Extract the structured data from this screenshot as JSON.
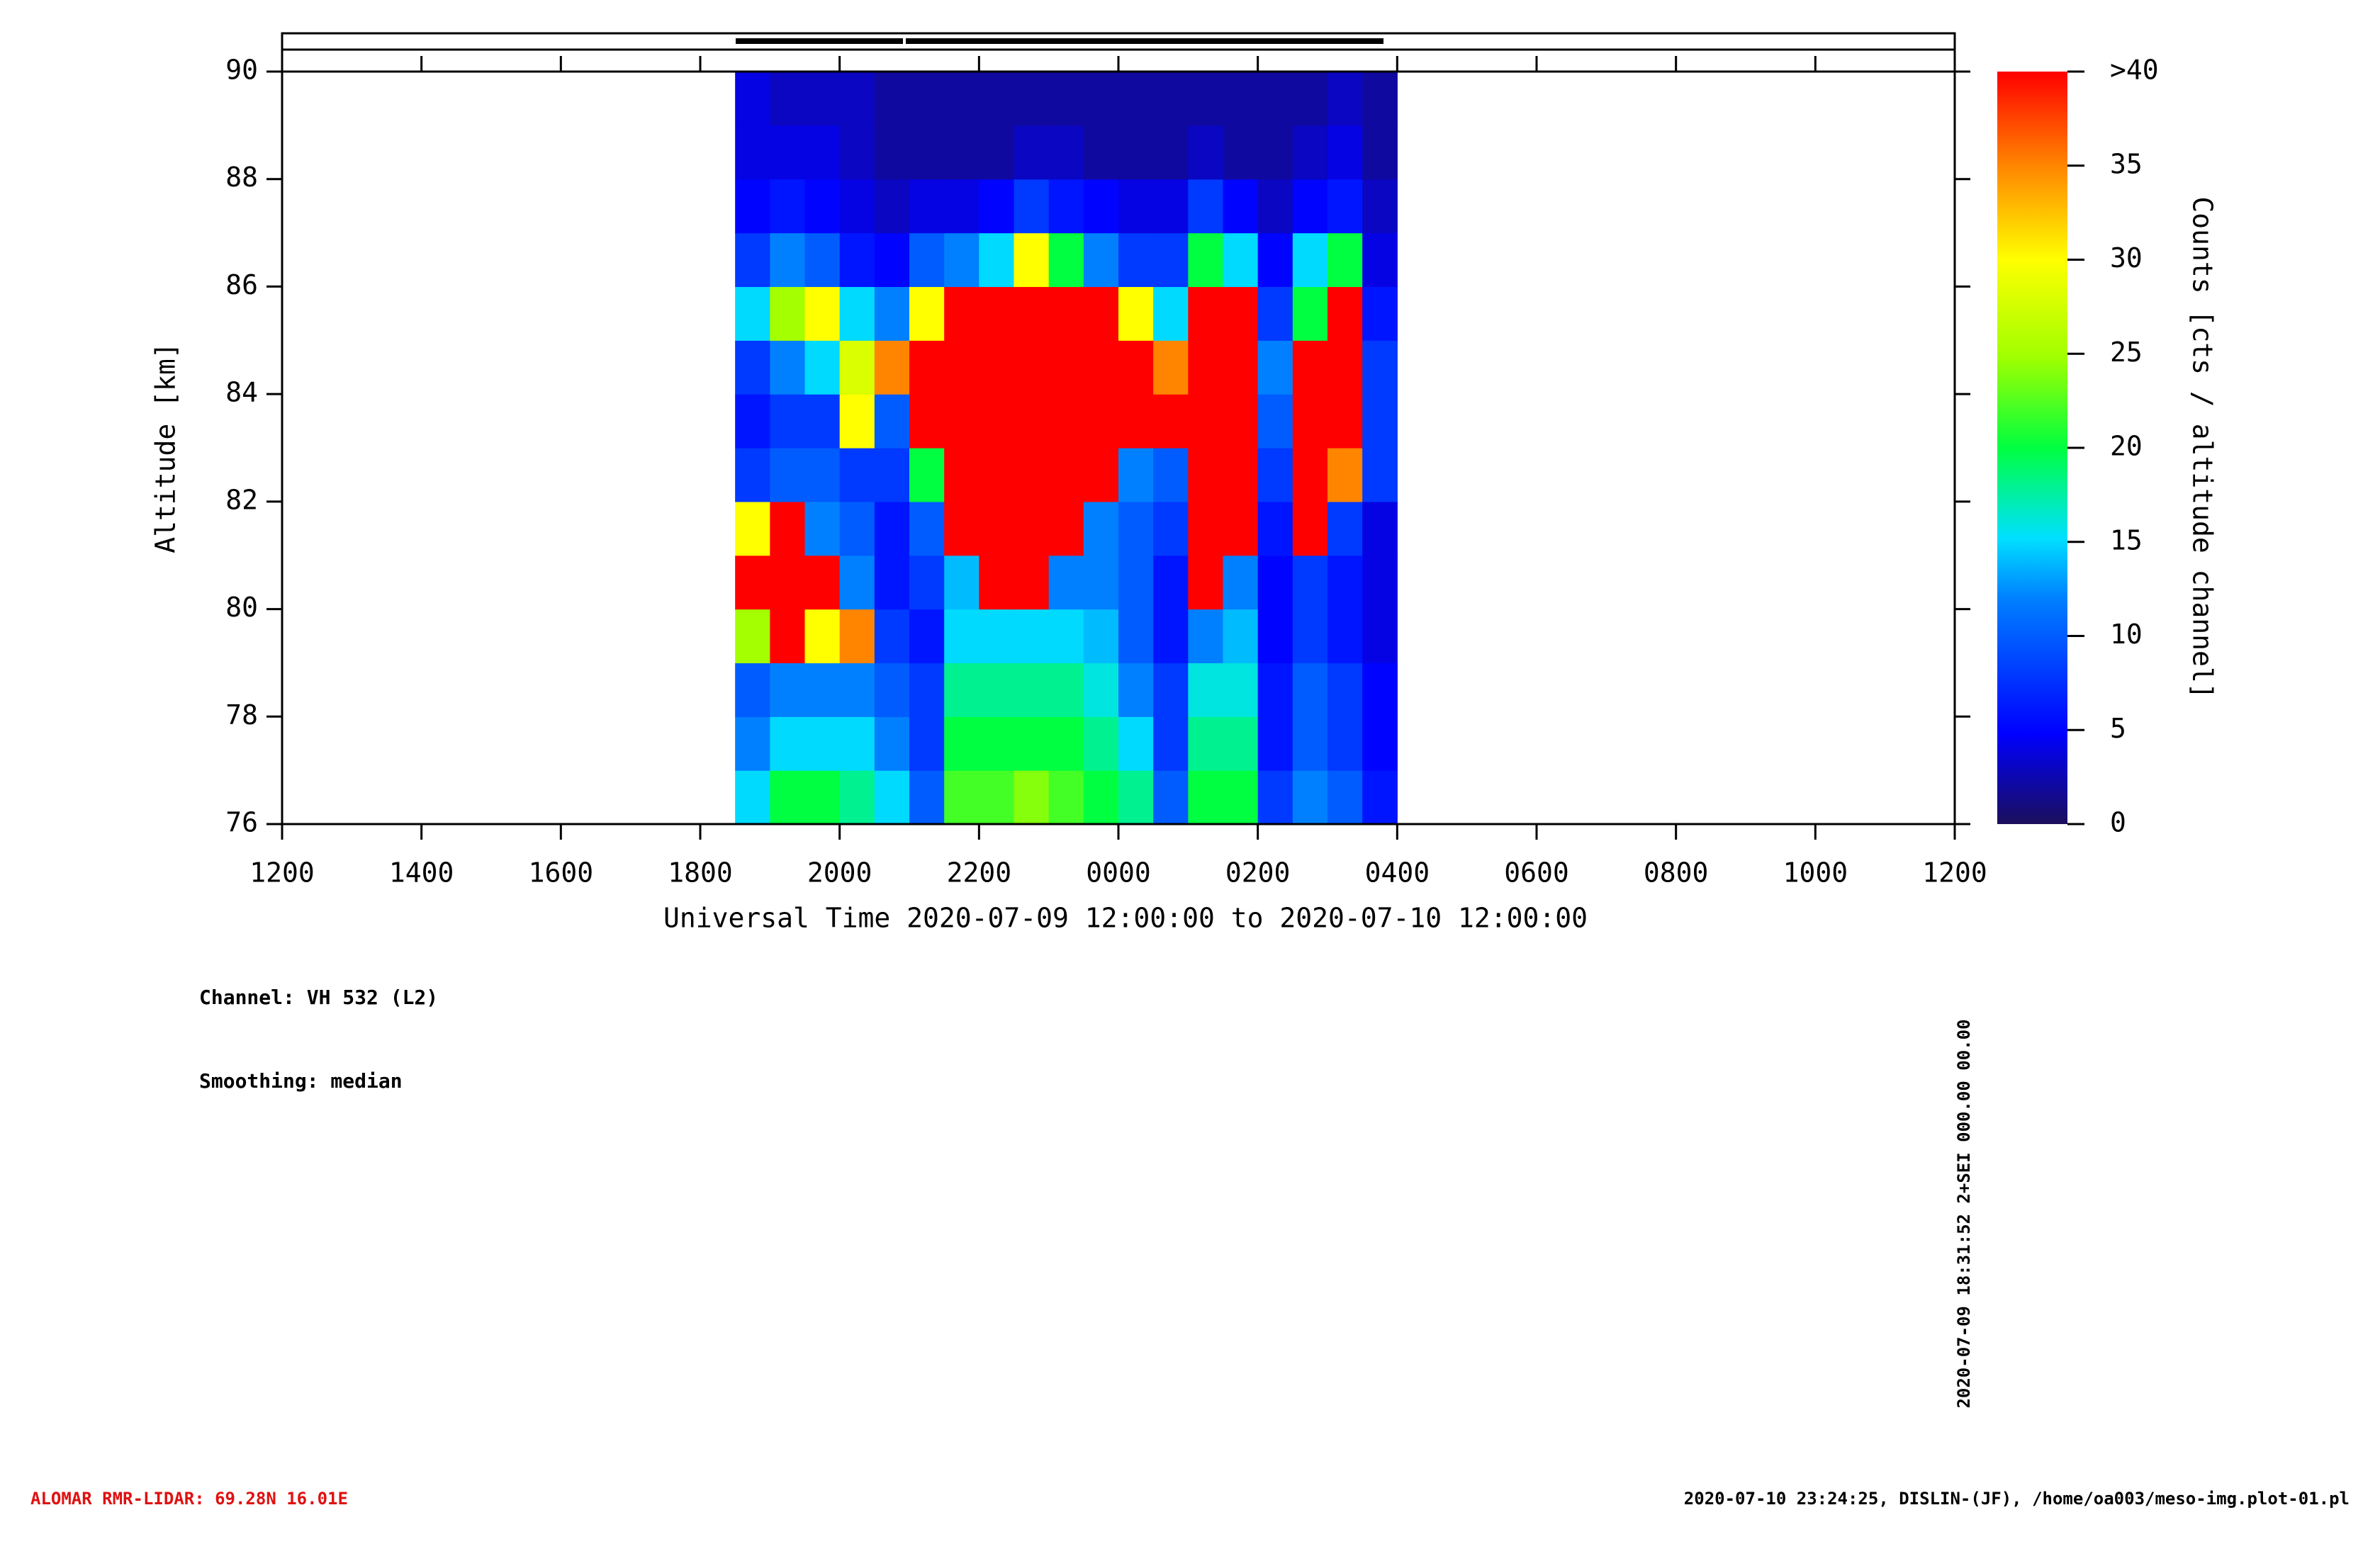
{
  "chart_data": {
    "type": "heatmap",
    "x_label": "Universal Time 2020-07-09 12:00:00 to 2020-07-10 12:00:00",
    "y_label": "Altitude [km]",
    "colorbar_label": "Counts [cts / altitude channel]",
    "xlim": [
      0,
      24
    ],
    "xticks": [
      {
        "value": 0,
        "label": "1200"
      },
      {
        "value": 2,
        "label": "1400"
      },
      {
        "value": 4,
        "label": "1600"
      },
      {
        "value": 6,
        "label": "1800"
      },
      {
        "value": 8,
        "label": "2000"
      },
      {
        "value": 10,
        "label": "2200"
      },
      {
        "value": 12,
        "label": "0000"
      },
      {
        "value": 14,
        "label": "0200"
      },
      {
        "value": 16,
        "label": "0400"
      },
      {
        "value": 18,
        "label": "0600"
      },
      {
        "value": 20,
        "label": "0800"
      },
      {
        "value": 22,
        "label": "1000"
      },
      {
        "value": 24,
        "label": "1200"
      }
    ],
    "ylim": [
      76,
      90
    ],
    "yticks": [
      76,
      78,
      80,
      82,
      84,
      86,
      88,
      90
    ],
    "zlim": [
      0,
      40
    ],
    "zticks": [
      0,
      5,
      10,
      15,
      20,
      25,
      30,
      35,
      {
        "value": 40,
        "label": ">40"
      }
    ],
    "x": [
      6.5,
      7,
      7.5,
      8,
      8.5,
      9,
      9.5,
      10,
      10.5,
      11,
      11.5,
      12,
      12.5,
      13,
      13.5,
      14,
      14.5,
      15,
      15.5
    ],
    "y": [
      76,
      77,
      78,
      79,
      80,
      81,
      82,
      83,
      84,
      85,
      86,
      87,
      88,
      89
    ],
    "values": [
      [
        15,
        20,
        20,
        18,
        15,
        10,
        22,
        22,
        24,
        22,
        20,
        18,
        10,
        20,
        20,
        8,
        12,
        10,
        6
      ],
      [
        12,
        15,
        15,
        15,
        12,
        8,
        20,
        20,
        20,
        20,
        18,
        15,
        8,
        18,
        18,
        6,
        10,
        8,
        5
      ],
      [
        10,
        12,
        12,
        12,
        10,
        8,
        18,
        18,
        18,
        18,
        16,
        12,
        8,
        16,
        16,
        6,
        10,
        8,
        5
      ],
      [
        25,
        40,
        30,
        35,
        8,
        6,
        15,
        15,
        15,
        15,
        14,
        10,
        6,
        12,
        14,
        5,
        8,
        6,
        4
      ],
      [
        40,
        40,
        40,
        12,
        6,
        8,
        14,
        40,
        40,
        12,
        12,
        10,
        6,
        40,
        12,
        5,
        8,
        6,
        4
      ],
      [
        30,
        40,
        12,
        10,
        6,
        10,
        40,
        40,
        40,
        40,
        12,
        10,
        8,
        40,
        40,
        6,
        40,
        8,
        4
      ],
      [
        8,
        10,
        10,
        8,
        8,
        20,
        40,
        40,
        40,
        40,
        40,
        12,
        10,
        40,
        40,
        8,
        40,
        35,
        8
      ],
      [
        6,
        8,
        8,
        30,
        10,
        40,
        40,
        40,
        40,
        40,
        40,
        40,
        40,
        40,
        40,
        10,
        40,
        40,
        8
      ],
      [
        8,
        12,
        15,
        28,
        35,
        40,
        40,
        40,
        40,
        40,
        40,
        40,
        35,
        40,
        40,
        12,
        40,
        40,
        8
      ],
      [
        15,
        25,
        30,
        15,
        12,
        30,
        40,
        40,
        40,
        40,
        40,
        30,
        15,
        40,
        40,
        8,
        20,
        40,
        6
      ],
      [
        8,
        12,
        10,
        6,
        5,
        10,
        12,
        15,
        30,
        20,
        12,
        8,
        8,
        20,
        15,
        5,
        15,
        20,
        4
      ],
      [
        5,
        6,
        5,
        4,
        3,
        4,
        4,
        5,
        8,
        6,
        5,
        4,
        4,
        8,
        5,
        3,
        5,
        6,
        3
      ],
      [
        4,
        4,
        4,
        3,
        2,
        2,
        2,
        2,
        3,
        3,
        2,
        2,
        2,
        3,
        2,
        2,
        3,
        4,
        2
      ],
      [
        4,
        3,
        3,
        3,
        2,
        2,
        2,
        2,
        2,
        2,
        2,
        2,
        2,
        2,
        2,
        2,
        2,
        3,
        2
      ]
    ],
    "annotations": {
      "channel": "Channel: VH 532 (L2)",
      "smoothing": "Smoothing: median",
      "stamp": "2020-07-09 18:31:52 2+SEI 000.00 00.00"
    }
  },
  "footer": {
    "left": "ALOMAR RMR-LIDAR: 69.28N 16.01E",
    "right": "2020-07-10 23:24:25, DISLIN-(JF), /home/oa003/meso-img.plot-01.pl"
  }
}
